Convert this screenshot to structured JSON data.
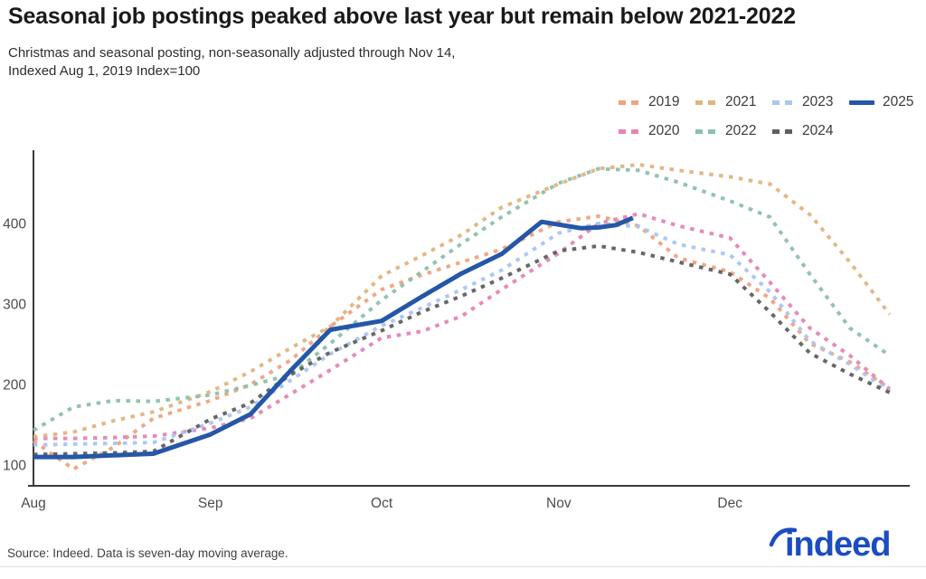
{
  "header": {
    "title": "Seasonal job postings peaked above last year but remain below 2021-2022",
    "subtitle_line1": "Christmas and seasonal posting, non-seasonally adjusted through Nov 14,",
    "subtitle_line2": "Indexed Aug 1, 2019 Index=100"
  },
  "legend": {
    "rows": [
      [
        "2019",
        "2021",
        "2023",
        "2025"
      ],
      [
        "2020",
        "2022",
        "2024"
      ]
    ]
  },
  "chart_data": {
    "type": "line",
    "title": "Seasonal job postings peaked above last year but remain below 2021-2022",
    "subtitle": "Christmas and seasonal posting, non-seasonally adjusted through Nov 14, Indexed Aug 1, 2019 Index=100",
    "x_unit": "days since Aug 1",
    "x_ticks": [
      {
        "label": "Aug",
        "day": 0
      },
      {
        "label": "Sep",
        "day": 31
      },
      {
        "label": "Oct",
        "day": 61
      },
      {
        "label": "Nov",
        "day": 92
      },
      {
        "label": "Dec",
        "day": 122
      }
    ],
    "y_ticks": [
      100,
      200,
      300,
      400
    ],
    "ylim": [
      75,
      495
    ],
    "grid": false,
    "legend_position": "top-right",
    "series": [
      {
        "name": "2019",
        "color": "#efa37e",
        "style": "dotted",
        "x": [
          0,
          7,
          14,
          21,
          31,
          38,
          45,
          52,
          61,
          68,
          75,
          82,
          92,
          99,
          106,
          113,
          122,
          129,
          136,
          143,
          150
        ],
        "values": [
          130,
          95,
          122,
          158,
          180,
          200,
          230,
          272,
          318,
          336,
          352,
          368,
          402,
          409,
          397,
          357,
          340,
          307,
          251,
          228,
          195
        ]
      },
      {
        "name": "2020",
        "color": "#e683b7",
        "style": "dotted",
        "x": [
          0,
          7,
          14,
          21,
          31,
          38,
          45,
          52,
          61,
          68,
          75,
          82,
          92,
          99,
          106,
          113,
          122,
          129,
          136,
          143,
          150
        ],
        "values": [
          133,
          133,
          134,
          136,
          146,
          158,
          188,
          218,
          258,
          266,
          285,
          318,
          363,
          400,
          412,
          397,
          382,
          327,
          270,
          236,
          194
        ]
      },
      {
        "name": "2021",
        "color": "#dfb57f",
        "style": "dotted",
        "x": [
          0,
          7,
          14,
          21,
          31,
          38,
          45,
          52,
          61,
          68,
          75,
          82,
          92,
          99,
          106,
          113,
          122,
          129,
          136,
          143,
          150
        ],
        "values": [
          135,
          141,
          155,
          166,
          191,
          216,
          245,
          272,
          335,
          360,
          386,
          420,
          449,
          468,
          473,
          466,
          458,
          449,
          411,
          352,
          287
        ]
      },
      {
        "name": "2022",
        "color": "#8cc0ab",
        "style": "dotted",
        "x": [
          0,
          7,
          14,
          21,
          31,
          38,
          45,
          52,
          61,
          68,
          75,
          82,
          92,
          99,
          106,
          113,
          122,
          129,
          136,
          143,
          150
        ],
        "values": [
          143,
          172,
          180,
          179,
          187,
          199,
          212,
          251,
          305,
          340,
          375,
          408,
          450,
          468,
          466,
          451,
          428,
          408,
          337,
          270,
          236
        ]
      },
      {
        "name": "2023",
        "color": "#a9c5f2",
        "style": "dotted",
        "x": [
          0,
          7,
          14,
          21,
          31,
          38,
          45,
          52,
          61,
          68,
          75,
          82,
          92,
          99,
          106,
          113,
          122,
          129,
          136,
          143,
          150
        ],
        "values": [
          125,
          126,
          127,
          128,
          152,
          172,
          205,
          238,
          273,
          295,
          318,
          342,
          388,
          400,
          396,
          374,
          361,
          315,
          254,
          225,
          192
        ]
      },
      {
        "name": "2024",
        "color": "#5f5f5f",
        "style": "dotted",
        "x": [
          0,
          7,
          14,
          21,
          31,
          38,
          45,
          52,
          61,
          68,
          75,
          82,
          92,
          99,
          106,
          113,
          122,
          129,
          136,
          143,
          150
        ],
        "values": [
          113,
          114,
          115,
          117,
          157,
          177,
          212,
          240,
          267,
          290,
          310,
          332,
          366,
          372,
          364,
          352,
          337,
          290,
          239,
          213,
          190
        ]
      },
      {
        "name": "2025",
        "color": "#2557a7",
        "style": "solid",
        "x": [
          0,
          7,
          14,
          21,
          31,
          38,
          45,
          52,
          61,
          68,
          75,
          82,
          89,
          96,
          99,
          102,
          105
        ],
        "values": [
          110,
          110,
          112,
          114,
          138,
          163,
          217,
          268,
          279,
          309,
          338,
          362,
          402,
          394,
          395,
          398,
          407
        ]
      }
    ]
  },
  "footer": {
    "source": "Source: Indeed. Data is seven-day moving average."
  },
  "logo": {
    "text": "indeed",
    "color": "#1b4dc1"
  }
}
